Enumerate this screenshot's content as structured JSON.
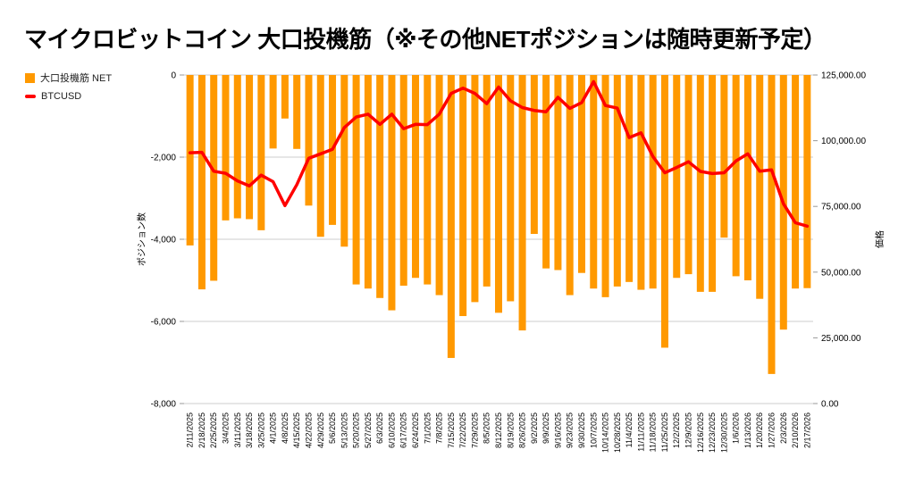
{
  "title": "マイクロビットコイン 大口投機筋（※その他NETポジションは随時更新予定）",
  "legend": {
    "bar_label": "大口投機筋 NET",
    "line_label": "BTCUSD"
  },
  "colors": {
    "bar": "#ff9900",
    "line": "#ff0000",
    "grid": "#cccccc",
    "tick": "#999999",
    "text": "#000000",
    "background": "#ffffff"
  },
  "chart_data": {
    "type": "bar",
    "subtype": "combo-bar-line",
    "title": "マイクロビットコイン 大口投機筋（※その他NETポジションは随時更新予定）",
    "grid": true,
    "legend_position": "top-left",
    "categories": [
      "2/11/2025",
      "2/18/2025",
      "2/25/2025",
      "3/4/2025",
      "3/11/2025",
      "3/18/2025",
      "3/25/2025",
      "4/1/2025",
      "4/8/2025",
      "4/15/2025",
      "4/22/2025",
      "4/29/2025",
      "5/6/2025",
      "5/13/2025",
      "5/20/2025",
      "5/27/2025",
      "6/3/2025",
      "6/10/2025",
      "6/17/2025",
      "6/24/2025",
      "7/1/2025",
      "7/8/2025",
      "7/15/2025",
      "7/22/2025",
      "7/29/2025",
      "8/5/2025",
      "8/12/2025",
      "8/19/2025",
      "8/26/2025",
      "9/2/2025",
      "9/9/2025",
      "9/16/2025",
      "9/23/2025",
      "9/30/2025",
      "10/7/2025",
      "10/14/2025",
      "10/28/2025",
      "11/4/2025",
      "11/11/2025",
      "11/18/2025",
      "11/25/2025",
      "12/2/2025",
      "12/9/2025",
      "12/16/2025",
      "12/23/2025",
      "12/30/2025",
      "1/6/2026",
      "1/13/2026",
      "1/20/2026",
      "1/27/2026",
      "2/3/2026",
      "2/10/2026",
      "2/17/2026"
    ],
    "series": [
      {
        "name": "大口投機筋 NET",
        "type": "bar",
        "yaxis": "left",
        "color": "#ff9900",
        "values": [
          -4150,
          -5220,
          -5010,
          -3540,
          -3490,
          -3510,
          -3780,
          -1790,
          -1060,
          -1800,
          -3180,
          -3940,
          -3650,
          -4180,
          -5100,
          -5200,
          -5430,
          -5730,
          -5130,
          -4940,
          -5100,
          -5360,
          -6890,
          -5870,
          -5530,
          -5150,
          -5790,
          -5510,
          -6220,
          -3870,
          -4710,
          -4750,
          -5360,
          -4820,
          -5200,
          -5410,
          -5150,
          -5040,
          -5230,
          -5200,
          -6640,
          -4940,
          -4850,
          -5280,
          -5280,
          -3960,
          -4900,
          -5000,
          -5450,
          -7280,
          -6200,
          -5200,
          -5190
        ]
      },
      {
        "name": "BTCUSD",
        "type": "line",
        "yaxis": "right",
        "color": "#ff0000",
        "values": [
          95400,
          95600,
          88400,
          87600,
          84700,
          82800,
          86900,
          84400,
          75300,
          83300,
          93300,
          95000,
          96700,
          105000,
          109000,
          110100,
          106200,
          110100,
          104600,
          106200,
          106100,
          110100,
          118000,
          120000,
          118000,
          114100,
          120400,
          115200,
          112600,
          111500,
          111000,
          116500,
          112300,
          114500,
          122500,
          113400,
          112400,
          101200,
          103000,
          94000,
          87800,
          89800,
          92000,
          88300,
          87500,
          87800,
          92300,
          95000,
          88400,
          88900,
          76000,
          68800,
          67500
        ]
      }
    ],
    "left_axis": {
      "title": "ポジション数",
      "min": -8000,
      "max": 0,
      "tick_labels": [
        "0",
        "-2,000",
        "-4,000",
        "-6,000",
        "-8,000"
      ]
    },
    "right_axis": {
      "title": "価格",
      "min": 0,
      "max": 125000,
      "tick_labels": [
        "125,000.00",
        "100,000.00",
        "75,000.00",
        "50,000.00",
        "25,000.00",
        "0.00"
      ]
    }
  }
}
